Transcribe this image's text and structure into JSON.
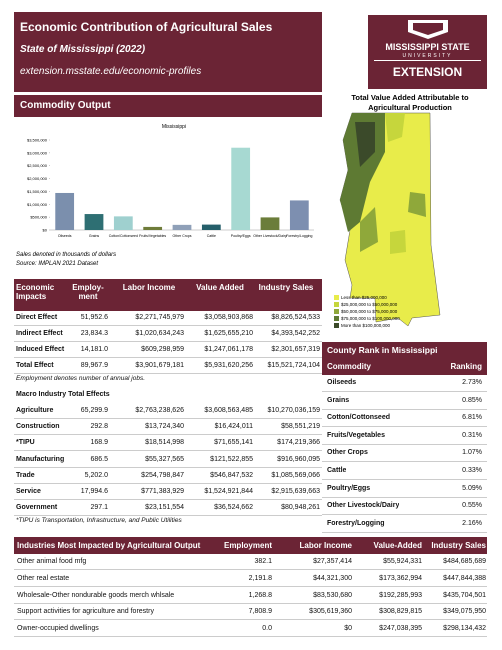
{
  "header": {
    "title": "Economic Contribution of Agricultural Sales",
    "subtitle": "State of Mississippi (2022)",
    "url": "extension.msstate.edu/economic-profiles"
  },
  "logo": {
    "name": "MISSISSIPPI STATE",
    "sub": "UNIVERSITY",
    "unit": "EXTENSION"
  },
  "commodity_section": {
    "title": "Commodity Output",
    "note1": "Sales denoted in thousands of dollars",
    "note2": "Source: IMPLAN 2021 Dataset"
  },
  "chart_data": {
    "type": "bar",
    "title": "Mississippi",
    "categories": [
      "Oilseeds",
      "Grains",
      "Cotton/Cottonseed",
      "Fruits/Vegetables",
      "Other Crops",
      "Cattle",
      "Poultry/Eggs",
      "Other Livestock/Dairy",
      "Forestry/Logging"
    ],
    "values": [
      1440000,
      620000,
      530000,
      120000,
      200000,
      210000,
      3200000,
      490000,
      1150000
    ],
    "colors": [
      "#7b8fad",
      "#2e6f73",
      "#9fd0cf",
      "#6f7c3a",
      "#8fa0b8",
      "#255f6a",
      "#a7d9d2",
      "#6b7d3a",
      "#7d8fb0"
    ],
    "ylim": [
      0,
      3500000
    ],
    "yticks": [
      {
        "value": 0,
        "label": "$0"
      },
      {
        "value": 500000,
        "label": "$500,000"
      },
      {
        "value": 1000000,
        "label": "$1,000,000"
      },
      {
        "value": 1500000,
        "label": "$1,500,000"
      },
      {
        "value": 2000000,
        "label": "$2,000,000"
      },
      {
        "value": 2500000,
        "label": "$2,500,000"
      },
      {
        "value": 3000000,
        "label": "$3,000,000"
      },
      {
        "value": 3500000,
        "label": "$3,500,000"
      }
    ]
  },
  "map": {
    "title": "Total Value Added Attributable to Agricultural Production",
    "legend": [
      {
        "label": "Less than $25,000,000",
        "color": "#e8ec4a"
      },
      {
        "label": "$25,000,000 to $50,000,000",
        "color": "#c6d63c"
      },
      {
        "label": "$50,000,000 to $75,000,000",
        "color": "#8fa83a"
      },
      {
        "label": "$75,000,000 to $100,000,000",
        "color": "#5e7a33"
      },
      {
        "label": "More than $100,000,000",
        "color": "#3b4a2a"
      }
    ]
  },
  "impacts": {
    "header": [
      "Economic Impacts",
      "Employ-ment",
      "Labor Income",
      "Value Added",
      "Industry Sales"
    ],
    "rows": [
      [
        "Direct Effect",
        "51,952.6",
        "$2,271,745,979",
        "$3,058,903,868",
        "$8,826,524,533"
      ],
      [
        "Indirect Effect",
        "23,834.3",
        "$1,020,634,243",
        "$1,625,655,210",
        "$4,393,542,252"
      ],
      [
        "Induced Effect",
        "14,181.0",
        "$609,298,959",
        "$1,247,061,178",
        "$2,301,657,319"
      ],
      [
        "Total Effect",
        "89,967.9",
        "$3,901,679,181",
        "$5,931,620,256",
        "$15,521,724,104"
      ]
    ],
    "note": "Employment denotes number of annual jobs."
  },
  "macro": {
    "title": "Macro Industry Total Effects",
    "rows": [
      [
        "Agriculture",
        "65,299.9",
        "$2,763,238,626",
        "$3,608,563,485",
        "$10,270,036,159"
      ],
      [
        "Construction",
        "292.8",
        "$13,724,340",
        "$16,424,011",
        "$58,551,219"
      ],
      [
        "*TIPU",
        "168.9",
        "$18,514,998",
        "$71,655,141",
        "$174,219,366"
      ],
      [
        "Manufacturing",
        "686.5",
        "$55,327,565",
        "$121,522,855",
        "$916,960,095"
      ],
      [
        "Trade",
        "5,202.0",
        "$254,798,847",
        "$546,847,532",
        "$1,085,569,066"
      ],
      [
        "Service",
        "17,994.6",
        "$771,383,929",
        "$1,524,921,844",
        "$2,915,639,663"
      ],
      [
        "Government",
        "297.1",
        "$23,151,554",
        "$36,524,662",
        "$80,948,261"
      ]
    ],
    "note": "*TIPU is Transportation, Infrastructure, and Public Utilities"
  },
  "county_rank": {
    "title": "County Rank in Mississippi",
    "header": [
      "Commodity",
      "Ranking"
    ],
    "rows": [
      [
        "Oilseeds",
        "2.73%"
      ],
      [
        "Grains",
        "0.85%"
      ],
      [
        "Cotton/Cottonseed",
        "6.81%"
      ],
      [
        "Fruits/Vegetables",
        "0.31%"
      ],
      [
        "Other Crops",
        "1.07%"
      ],
      [
        "Cattle",
        "0.33%"
      ],
      [
        "Poultry/Eggs",
        "5.09%"
      ],
      [
        "Other Livestock/Dairy",
        "0.55%"
      ],
      [
        "Forestry/Logging",
        "2.16%"
      ]
    ]
  },
  "industries": {
    "header": [
      "Industries Most Impacted by Agricultural Output",
      "Employment",
      "Labor Income",
      "Value-Added",
      "Industry Sales"
    ],
    "rows": [
      [
        "Other animal food mfg",
        "382.1",
        "$27,357,414",
        "$55,924,331",
        "$484,685,689"
      ],
      [
        "Other real estate",
        "2,191.8",
        "$44,321,300",
        "$173,362,994",
        "$447,844,388"
      ],
      [
        "Wholesale-Other nondurable goods merch whlsale",
        "1,268.8",
        "$83,530,680",
        "$192,285,993",
        "$435,704,501"
      ],
      [
        "Support activities for agriculture and forestry",
        "7,808.9",
        "$305,619,360",
        "$308,829,815",
        "$349,075,950"
      ],
      [
        "Owner-occupied dwellings",
        "0.0",
        "$0",
        "$247,038,395",
        "$298,134,432"
      ]
    ]
  }
}
